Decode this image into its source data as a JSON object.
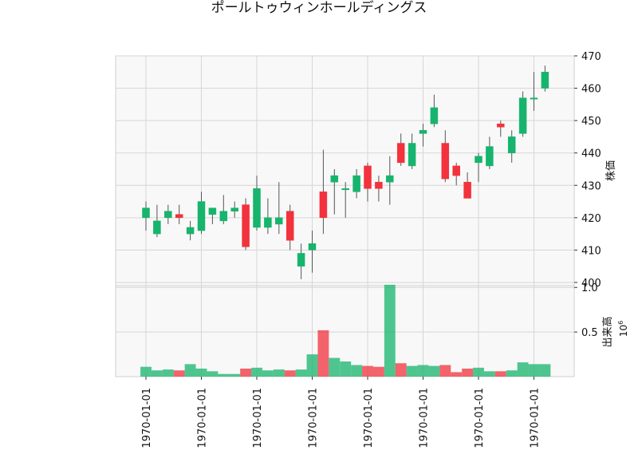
{
  "chart_data": {
    "type": "candlestick",
    "title": "ポールトゥウィンホールディングス",
    "up_color": "#16b46c",
    "down_color": "#f2323c",
    "plot_bg": "#f8f8f8",
    "grid": true,
    "price_panel": {
      "ylabel": "株価",
      "ylim": [
        399,
        470
      ],
      "yticks": [
        400,
        410,
        420,
        430,
        440,
        450,
        460,
        470
      ]
    },
    "volume_panel": {
      "ylabel": "出来高",
      "multiplier_label": "10",
      "multiplier_exp": "6",
      "ylim": [
        0,
        1.02
      ],
      "yticks": [
        0.5,
        1.0
      ],
      "ytick_labels": [
        "0.5",
        "1.0"
      ]
    },
    "xtick_labels": [
      "1970-01-01",
      "1970-01-01",
      "1970-01-01",
      "1970-01-01",
      "1970-01-01",
      "1970-01-01",
      "1970-01-01",
      "1970-01-01"
    ],
    "xtick_indices": [
      0,
      5,
      10,
      15,
      20,
      25,
      30,
      35
    ],
    "candles": [
      {
        "o": 420,
        "h": 425,
        "l": 416,
        "c": 423,
        "v": 0.11
      },
      {
        "o": 415,
        "h": 424,
        "l": 414,
        "c": 419,
        "v": 0.07
      },
      {
        "o": 420,
        "h": 424,
        "l": 418,
        "c": 422,
        "v": 0.08
      },
      {
        "o": 421,
        "h": 424,
        "l": 418,
        "c": 420,
        "v": 0.07
      },
      {
        "o": 415,
        "h": 419,
        "l": 413,
        "c": 417,
        "v": 0.14
      },
      {
        "o": 416,
        "h": 428,
        "l": 415,
        "c": 425,
        "v": 0.09
      },
      {
        "o": 421,
        "h": 423,
        "l": 418,
        "c": 423,
        "v": 0.06
      },
      {
        "o": 419,
        "h": 427,
        "l": 418,
        "c": 422,
        "v": 0.03
      },
      {
        "o": 422,
        "h": 425,
        "l": 420,
        "c": 423,
        "v": 0.03
      },
      {
        "o": 424,
        "h": 426,
        "l": 410,
        "c": 411,
        "v": 0.09
      },
      {
        "o": 417,
        "h": 433,
        "l": 416,
        "c": 429,
        "v": 0.1
      },
      {
        "o": 417,
        "h": 426,
        "l": 415,
        "c": 420,
        "v": 0.07
      },
      {
        "o": 418,
        "h": 431,
        "l": 415,
        "c": 420,
        "v": 0.08
      },
      {
        "o": 422,
        "h": 424,
        "l": 410,
        "c": 413,
        "v": 0.07
      },
      {
        "o": 405,
        "h": 412,
        "l": 401,
        "c": 409,
        "v": 0.08
      },
      {
        "o": 410,
        "h": 416,
        "l": 403,
        "c": 412,
        "v": 0.25
      },
      {
        "o": 428,
        "h": 441,
        "l": 415,
        "c": 420,
        "v": 0.52
      },
      {
        "o": 431,
        "h": 435,
        "l": 421,
        "c": 433,
        "v": 0.21
      },
      {
        "o": 429,
        "h": 431,
        "l": 420,
        "c": 429,
        "v": 0.17
      },
      {
        "o": 428,
        "h": 435,
        "l": 426,
        "c": 433,
        "v": 0.13
      },
      {
        "o": 436,
        "h": 437,
        "l": 425,
        "c": 429,
        "v": 0.12
      },
      {
        "o": 431,
        "h": 433,
        "l": 425,
        "c": 429,
        "v": 0.11
      },
      {
        "o": 431,
        "h": 439,
        "l": 424,
        "c": 433,
        "v": 1.03
      },
      {
        "o": 443,
        "h": 446,
        "l": 436,
        "c": 437,
        "v": 0.15
      },
      {
        "o": 436,
        "h": 446,
        "l": 435,
        "c": 443,
        "v": 0.12
      },
      {
        "o": 446,
        "h": 449,
        "l": 442,
        "c": 447,
        "v": 0.13
      },
      {
        "o": 449,
        "h": 458,
        "l": 448,
        "c": 454,
        "v": 0.12
      },
      {
        "o": 443,
        "h": 447,
        "l": 431,
        "c": 432,
        "v": 0.13
      },
      {
        "o": 436,
        "h": 437,
        "l": 430,
        "c": 433,
        "v": 0.05
      },
      {
        "o": 431,
        "h": 434,
        "l": 426,
        "c": 426,
        "v": 0.09
      },
      {
        "o": 437,
        "h": 440,
        "l": 431,
        "c": 439,
        "v": 0.1
      },
      {
        "o": 436,
        "h": 445,
        "l": 435,
        "c": 442,
        "v": 0.06
      },
      {
        "o": 449,
        "h": 450,
        "l": 445,
        "c": 448,
        "v": 0.06
      },
      {
        "o": 440,
        "h": 447,
        "l": 437,
        "c": 445,
        "v": 0.07
      },
      {
        "o": 446,
        "h": 459,
        "l": 445,
        "c": 457,
        "v": 0.16
      },
      {
        "o": 457,
        "h": 465,
        "l": 453,
        "c": 457,
        "v": 0.14
      },
      {
        "o": 460,
        "h": 467,
        "l": 459,
        "c": 465,
        "v": 0.14
      }
    ]
  }
}
